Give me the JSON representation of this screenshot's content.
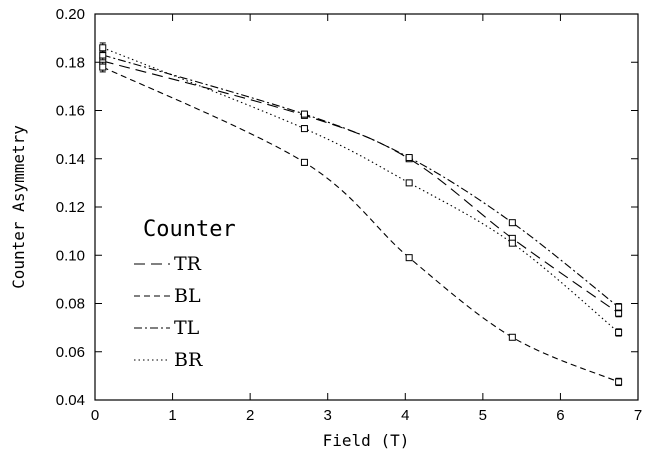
{
  "chart_data": {
    "type": "line",
    "xlabel": "Field (T)",
    "ylabel": "Counter Asymmetry",
    "xlim": [
      0,
      7
    ],
    "ylim": [
      0.04,
      0.2
    ],
    "xticks": [
      0,
      1,
      2,
      3,
      4,
      5,
      6,
      7
    ],
    "yticks": [
      0.04,
      0.06,
      0.08,
      0.1,
      0.12,
      0.14,
      0.16,
      0.18,
      0.2
    ],
    "grid": false,
    "legend": {
      "title": "Counter",
      "placement": "bottom-left"
    },
    "series": [
      {
        "name": "TR",
        "dash": "long-dash",
        "x": [
          0.1,
          2.7,
          4.05,
          5.38,
          6.75
        ],
        "y": [
          0.1805,
          0.158,
          0.14,
          0.107,
          0.076
        ],
        "err": [
          0.002,
          0.0012,
          0.001,
          0.001,
          0.0015
        ]
      },
      {
        "name": "BL",
        "dash": "short-dash",
        "x": [
          0.1,
          2.7,
          4.05,
          5.38,
          6.75
        ],
        "y": [
          0.178,
          0.1385,
          0.099,
          0.066,
          0.0475
        ],
        "err": [
          0.002,
          0.0012,
          0.001,
          0.001,
          0.0015
        ]
      },
      {
        "name": "TL",
        "dash": "dash-dot",
        "x": [
          0.1,
          2.7,
          4.05,
          5.38,
          6.75
        ],
        "y": [
          0.183,
          0.1585,
          0.1405,
          0.1135,
          0.0785
        ],
        "err": [
          0.002,
          0.0012,
          0.001,
          0.001,
          0.0015
        ]
      },
      {
        "name": "BR",
        "dash": "dotted",
        "x": [
          0.1,
          2.7,
          4.05,
          5.38,
          6.75
        ],
        "y": [
          0.186,
          0.1525,
          0.13,
          0.105,
          0.068
        ],
        "err": [
          0.002,
          0.0012,
          0.001,
          0.001,
          0.0015
        ]
      }
    ]
  }
}
